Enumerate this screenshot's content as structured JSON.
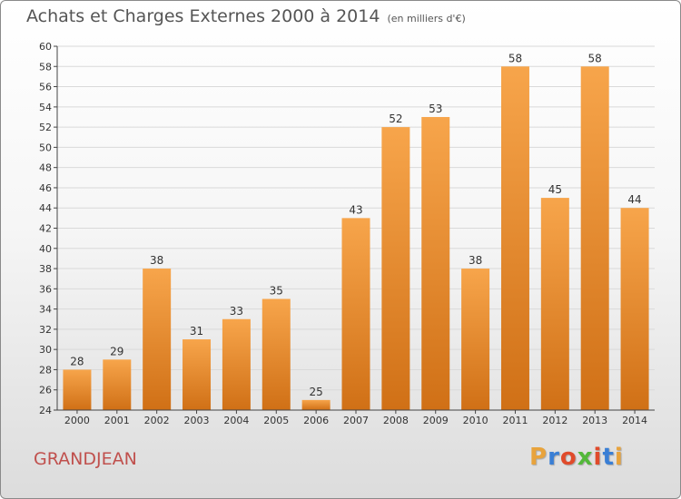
{
  "header": {
    "title": "Achats et Charges Externes 2000 à 2014",
    "subtitle": "(en milliers d'€)"
  },
  "footer": {
    "commune": "GRANDJEAN",
    "logo_letters": [
      "P",
      "r",
      "o",
      "x",
      "i",
      "t",
      "i"
    ],
    "logo_colors": [
      "#e8a33c",
      "#3a7fd5",
      "#e04b2b",
      "#53b83a",
      "#e04b2b",
      "#3a7fd5",
      "#e8a33c"
    ]
  },
  "colors": {
    "bar_top": "#f7a54b",
    "bar_bottom": "#d07016",
    "grid": "#d9d9d9",
    "axis": "#444444",
    "text": "#333333"
  },
  "chart_data": {
    "type": "bar",
    "title": "Achats et Charges Externes 2000 à 2014",
    "subtitle": "(en milliers d'€)",
    "categories": [
      "2000",
      "2001",
      "2002",
      "2003",
      "2004",
      "2005",
      "2006",
      "2007",
      "2008",
      "2009",
      "2010",
      "2011",
      "2012",
      "2013",
      "2014"
    ],
    "values": [
      28,
      29,
      38,
      31,
      33,
      35,
      25,
      43,
      52,
      53,
      38,
      58,
      45,
      58,
      44
    ],
    "value_labels": [
      "28",
      "29",
      "38",
      "31",
      "33",
      "35",
      "25",
      "43",
      "52",
      "53",
      "38",
      "58",
      "45",
      "58",
      "44"
    ],
    "ylim": [
      24,
      60
    ],
    "yticks": [
      "24",
      "26",
      "28",
      "30",
      "32",
      "34",
      "36",
      "38",
      "40",
      "42",
      "44",
      "46",
      "48",
      "50",
      "52",
      "54",
      "56",
      "58",
      "60"
    ],
    "grid": true
  }
}
